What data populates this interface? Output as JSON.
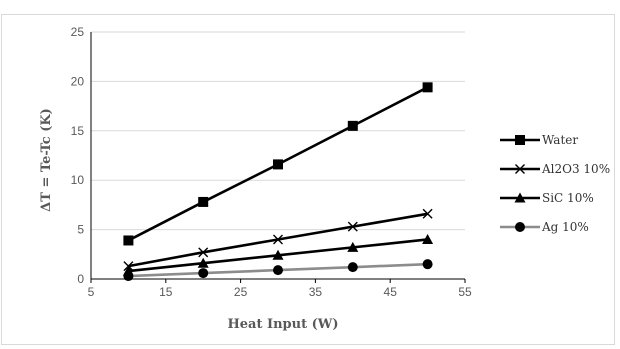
{
  "chart_data": {
    "type": "line",
    "xlabel": "Heat Input (W)",
    "ylabel": "ΔT = Te-Tc (K)",
    "xlim": [
      5,
      55
    ],
    "ylim": [
      0,
      25
    ],
    "x_ticks": [
      "5",
      "15",
      "25",
      "35",
      "45",
      "55"
    ],
    "y_ticks": [
      "0",
      "5",
      "10",
      "15",
      "20",
      "25"
    ],
    "grid": "horizontal",
    "legend_position": "right",
    "x": [
      10,
      20,
      30,
      40,
      50
    ],
    "series": [
      {
        "name": "Water",
        "values": [
          3.9,
          7.8,
          11.6,
          15.5,
          19.4
        ],
        "marker": "square",
        "color": "#000000"
      },
      {
        "name": "Al2O3 10%",
        "values": [
          1.3,
          2.7,
          4.0,
          5.3,
          6.6
        ],
        "marker": "x",
        "color": "#000000"
      },
      {
        "name": "SiC 10%",
        "values": [
          0.8,
          1.6,
          2.4,
          3.2,
          4.0
        ],
        "marker": "triangle",
        "color": "#000000"
      },
      {
        "name": "Ag 10%",
        "values": [
          0.3,
          0.6,
          0.9,
          1.2,
          1.5
        ],
        "marker": "circle",
        "color": "#000000",
        "line_color": "#8c8c8c"
      }
    ]
  }
}
